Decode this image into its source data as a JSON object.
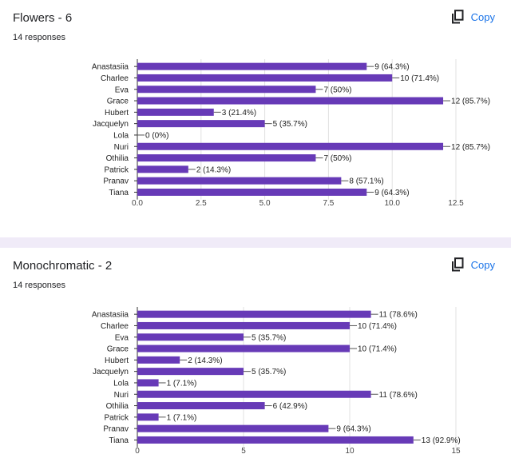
{
  "cards": [
    {
      "title": "Flowers - 6",
      "subtitle": "14 responses",
      "copy_label": "Copy",
      "copy_icon": "copy-icon"
    },
    {
      "title": "Monochromatic - 2",
      "subtitle": "14 responses",
      "copy_label": "Copy",
      "copy_icon": "copy-icon"
    }
  ],
  "colors": {
    "bar": "#673ab7",
    "accent": "#1a73e8",
    "background": "#f0ebf8"
  },
  "chart_data": [
    {
      "type": "bar",
      "orientation": "horizontal",
      "categories": [
        "Anastasiia",
        "Charlee",
        "Eva",
        "Grace",
        "Hubert",
        "Jacquelyn",
        "Lola",
        "Nuri",
        "Othilia",
        "Patrick",
        "Pranav",
        "Tiana"
      ],
      "values": [
        9,
        10,
        7,
        12,
        3,
        5,
        0,
        12,
        7,
        2,
        8,
        9
      ],
      "data_labels": [
        "9 (64.3%)",
        "10 (71.4%)",
        "7 (50%)",
        "12 (85.7%)",
        "3 (21.4%)",
        "5 (35.7%)",
        "0 (0%)",
        "12 (85.7%)",
        "7 (50%)",
        "2 (14.3%)",
        "8 (57.1%)",
        "9 (64.3%)"
      ],
      "xlim": [
        0,
        12.5
      ],
      "xticks": [
        "0.0",
        "2.5",
        "5.0",
        "7.5",
        "10.0",
        "12.5"
      ],
      "grid": true
    },
    {
      "type": "bar",
      "orientation": "horizontal",
      "categories": [
        "Anastasiia",
        "Charlee",
        "Eva",
        "Grace",
        "Hubert",
        "Jacquelyn",
        "Lola",
        "Nuri",
        "Othilia",
        "Patrick",
        "Pranav",
        "Tiana"
      ],
      "values": [
        11,
        10,
        5,
        10,
        2,
        5,
        1,
        11,
        6,
        1,
        9,
        13
      ],
      "data_labels": [
        "11 (78.6%)",
        "10 (71.4%)",
        "5 (35.7%)",
        "10 (71.4%)",
        "2 (14.3%)",
        "5 (35.7%)",
        "1 (7.1%)",
        "11 (78.6%)",
        "6 (42.9%)",
        "1 (7.1%)",
        "9 (64.3%)",
        "13 (92.9%)"
      ],
      "xlim": [
        0,
        15
      ],
      "xticks": [
        "0",
        "5",
        "10",
        "15"
      ],
      "grid": true
    }
  ]
}
